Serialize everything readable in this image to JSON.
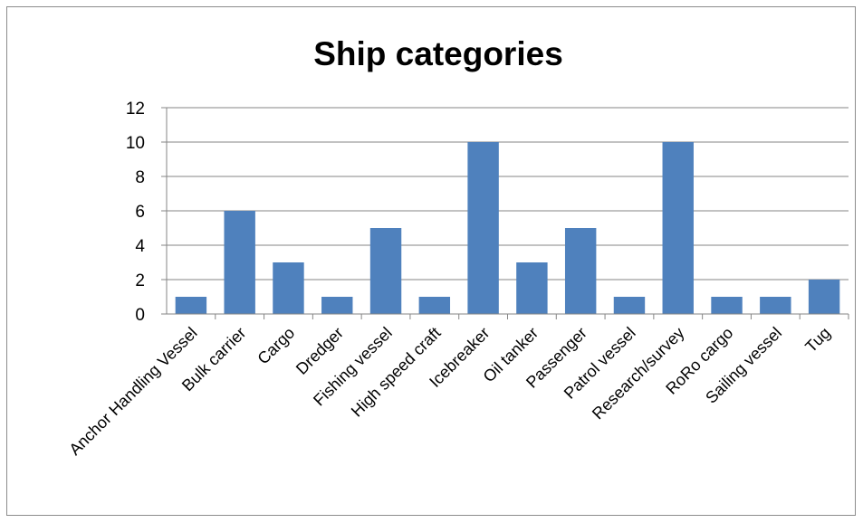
{
  "chart_data": {
    "type": "bar",
    "title": "Ship categories",
    "xlabel": "",
    "ylabel": "",
    "categories": [
      "Anchor Handling Vessel",
      "Bulk carrier",
      "Cargo",
      "Dredger",
      "Fishing vessel",
      "High speed craft",
      "Icebreaker",
      "Oil tanker",
      "Passenger",
      "Patrol vessel",
      "Research/survey",
      "RoRo cargo",
      "Sailing vessel",
      "Tug"
    ],
    "values": [
      1,
      6,
      3,
      1,
      5,
      1,
      10,
      3,
      5,
      1,
      10,
      1,
      1,
      2
    ],
    "ylim": [
      0,
      12
    ],
    "yticks": [
      0,
      2,
      4,
      6,
      8,
      10,
      12
    ],
    "grid": true,
    "legend": "none",
    "bar_color": "#4F81BD"
  }
}
